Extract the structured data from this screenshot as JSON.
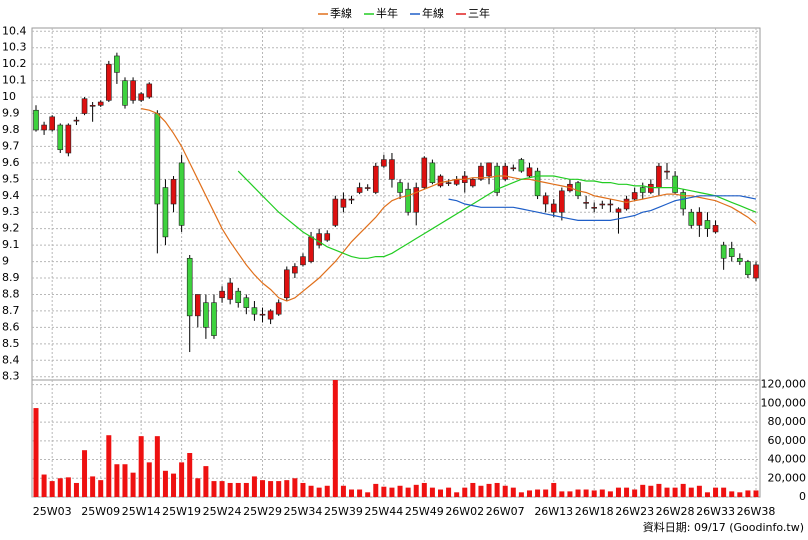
{
  "chart_data": {
    "type": "candlestick",
    "legend": "top",
    "grid": true,
    "up_color": "#dd1010",
    "down_color": "#3ed23e",
    "volume_color": "#ee1111",
    "categories": [
      null,
      null,
      "25W03",
      null,
      null,
      null,
      null,
      null,
      "25W09",
      null,
      null,
      null,
      null,
      "25W14",
      null,
      null,
      null,
      null,
      "25W19",
      null,
      null,
      null,
      null,
      "25W24",
      null,
      null,
      null,
      null,
      "25W29",
      null,
      null,
      null,
      null,
      "25W34",
      null,
      null,
      null,
      null,
      "25W39",
      null,
      null,
      null,
      null,
      "25W44",
      null,
      null,
      null,
      null,
      "25W49",
      null,
      null,
      null,
      null,
      "26W02",
      null,
      null,
      null,
      null,
      "26W07",
      null,
      null,
      null,
      null,
      null,
      "26W13",
      null,
      null,
      null,
      null,
      "26W18",
      null,
      null,
      null,
      null,
      "26W23",
      null,
      null,
      null,
      null,
      "26W28",
      null,
      null,
      null,
      null,
      "26W33",
      null,
      null,
      null,
      null,
      "26W38"
    ],
    "open": [
      9.92,
      9.8,
      9.8,
      9.83,
      9.66,
      9.86,
      9.9,
      9.95,
      9.95,
      9.98,
      10.25,
      10.1,
      9.98,
      9.98,
      10.0,
      9.9,
      9.45,
      9.35,
      9.6,
      9.02,
      8.67,
      8.75,
      8.75,
      8.78,
      8.77,
      8.82,
      8.78,
      8.72,
      8.68,
      8.65,
      8.68,
      8.78,
      8.93,
      8.98,
      9.0,
      9.1,
      9.13,
      9.22,
      9.33,
      9.38,
      9.42,
      9.45,
      9.42,
      9.58,
      9.5,
      9.48,
      9.44,
      9.3,
      9.45,
      9.6,
      9.46,
      9.48,
      9.47,
      9.48,
      9.46,
      9.5,
      9.52,
      9.58,
      9.5,
      9.57,
      9.62,
      9.52,
      9.55,
      9.35,
      9.3,
      9.3,
      9.43,
      9.48,
      9.36,
      9.33,
      9.35,
      9.35,
      9.3,
      9.32,
      9.38,
      9.45,
      9.42,
      9.45,
      9.55,
      9.52,
      9.42,
      9.3,
      9.22,
      9.25,
      9.18,
      9.1,
      9.08,
      9.02,
      9.0,
      8.9
    ],
    "high": [
      9.95,
      9.85,
      9.89,
      9.84,
      9.84,
      9.88,
      10.0,
      9.97,
      9.98,
      10.22,
      10.27,
      10.12,
      10.12,
      10.03,
      10.09,
      9.92,
      9.5,
      9.52,
      9.65,
      9.04,
      8.8,
      8.8,
      8.8,
      8.85,
      8.9,
      8.84,
      8.8,
      8.76,
      8.72,
      8.71,
      8.77,
      8.97,
      8.99,
      9.05,
      9.18,
      9.2,
      9.19,
      9.4,
      9.42,
      9.4,
      9.48,
      9.47,
      9.6,
      9.65,
      9.66,
      9.5,
      9.48,
      9.48,
      9.64,
      9.62,
      9.53,
      9.5,
      9.52,
      9.55,
      9.51,
      9.6,
      9.6,
      9.6,
      9.6,
      9.59,
      9.63,
      9.6,
      9.57,
      9.42,
      9.38,
      9.45,
      9.5,
      9.49,
      9.4,
      9.36,
      9.37,
      9.38,
      9.33,
      9.4,
      9.45,
      9.48,
      9.5,
      9.6,
      9.6,
      9.55,
      9.44,
      9.32,
      9.33,
      9.3,
      9.25,
      9.12,
      9.12,
      9.05,
      9.01,
      9.0
    ],
    "low": [
      9.79,
      9.77,
      9.79,
      9.66,
      9.64,
      9.83,
      9.89,
      9.85,
      9.94,
      9.97,
      10.08,
      9.93,
      9.96,
      9.97,
      9.99,
      9.05,
      9.1,
      9.3,
      9.18,
      8.45,
      8.6,
      8.53,
      8.53,
      8.75,
      8.74,
      8.72,
      8.68,
      8.64,
      8.63,
      8.62,
      8.67,
      8.76,
      8.9,
      8.97,
      8.99,
      9.08,
      9.12,
      9.21,
      9.3,
      9.35,
      9.41,
      9.43,
      9.41,
      9.57,
      9.45,
      9.38,
      9.28,
      9.22,
      9.44,
      9.47,
      9.45,
      9.46,
      9.46,
      9.42,
      9.45,
      9.49,
      9.47,
      9.4,
      9.49,
      9.55,
      9.54,
      9.51,
      9.38,
      9.3,
      9.27,
      9.25,
      9.42,
      9.38,
      9.32,
      9.3,
      9.32,
      9.3,
      9.17,
      9.31,
      9.37,
      9.38,
      9.41,
      9.4,
      9.5,
      9.41,
      9.28,
      9.2,
      9.15,
      9.15,
      9.17,
      8.95,
      9.0,
      8.98,
      8.9,
      8.88
    ],
    "close": [
      9.8,
      9.83,
      9.88,
      9.68,
      9.83,
      9.86,
      9.99,
      9.95,
      9.97,
      10.2,
      10.15,
      9.95,
      10.1,
      10.02,
      10.08,
      9.35,
      9.15,
      9.5,
      9.22,
      8.67,
      8.8,
      8.6,
      8.55,
      8.82,
      8.87,
      8.75,
      8.72,
      8.68,
      8.68,
      8.7,
      8.75,
      8.95,
      8.97,
      9.03,
      9.15,
      9.17,
      9.17,
      9.38,
      9.38,
      9.38,
      9.45,
      9.45,
      9.58,
      9.62,
      9.62,
      9.42,
      9.3,
      9.45,
      9.63,
      9.48,
      9.52,
      9.48,
      9.5,
      9.52,
      9.5,
      9.58,
      9.6,
      9.42,
      9.58,
      9.57,
      9.55,
      9.57,
      9.4,
      9.4,
      9.35,
      9.43,
      9.47,
      9.4,
      9.36,
      9.33,
      9.35,
      9.35,
      9.32,
      9.38,
      9.42,
      9.42,
      9.47,
      9.58,
      9.55,
      9.42,
      9.32,
      9.22,
      9.3,
      9.2,
      9.22,
      9.02,
      9.03,
      9.0,
      8.92,
      8.98
    ],
    "volume": [
      95000,
      24000,
      17000,
      20000,
      21000,
      15000,
      50000,
      22000,
      18000,
      66000,
      35000,
      35000,
      26000,
      65000,
      37000,
      65000,
      28000,
      25000,
      37000,
      47000,
      20000,
      33000,
      17000,
      17000,
      15000,
      15000,
      15000,
      22000,
      18000,
      17000,
      17000,
      18000,
      20000,
      15000,
      12000,
      10000,
      12000,
      125000,
      12000,
      8000,
      8000,
      5000,
      14000,
      11000,
      10000,
      12000,
      10000,
      13000,
      15000,
      10000,
      8000,
      10000,
      5000,
      10000,
      15000,
      12000,
      14000,
      15000,
      12000,
      10000,
      5000,
      7000,
      8000,
      8000,
      15000,
      6000,
      6000,
      8000,
      8000,
      7000,
      8000,
      6000,
      10000,
      10000,
      8000,
      13000,
      12000,
      14000,
      10000,
      10000,
      14000,
      10000,
      12000,
      5000,
      10000,
      10000,
      6000,
      5000,
      7000,
      7000
    ],
    "series": [
      {
        "name": "季線",
        "color": "#e0701c",
        "values": [
          null,
          null,
          null,
          null,
          null,
          null,
          null,
          null,
          null,
          null,
          null,
          null,
          null,
          9.93,
          9.92,
          9.9,
          9.85,
          9.78,
          9.7,
          9.6,
          9.5,
          9.4,
          9.3,
          9.2,
          9.12,
          9.05,
          8.98,
          8.92,
          8.87,
          8.83,
          8.78,
          8.76,
          8.78,
          8.82,
          8.86,
          8.9,
          8.95,
          9.0,
          9.06,
          9.12,
          9.17,
          9.22,
          9.27,
          9.33,
          9.37,
          9.39,
          9.4,
          9.42,
          9.44,
          9.46,
          9.48,
          9.49,
          9.5,
          9.5,
          9.51,
          9.51,
          9.51,
          9.52,
          9.52,
          9.51,
          9.5,
          9.5,
          9.49,
          9.48,
          9.47,
          9.46,
          9.45,
          9.43,
          9.42,
          9.4,
          9.39,
          9.38,
          9.37,
          9.36,
          9.37,
          9.38,
          9.39,
          9.4,
          9.41,
          9.41,
          9.4,
          9.4,
          9.39,
          9.38,
          9.37,
          9.35,
          9.33,
          9.3,
          9.27,
          9.23
        ]
      },
      {
        "name": "半年",
        "color": "#22cc22",
        "values": [
          null,
          null,
          null,
          null,
          null,
          null,
          null,
          null,
          null,
          null,
          null,
          null,
          null,
          null,
          null,
          null,
          null,
          null,
          null,
          null,
          null,
          null,
          null,
          null,
          null,
          9.55,
          9.5,
          9.45,
          9.4,
          9.35,
          9.3,
          9.26,
          9.22,
          9.18,
          9.15,
          9.12,
          9.09,
          9.07,
          9.05,
          9.03,
          9.02,
          9.02,
          9.03,
          9.03,
          9.05,
          9.08,
          9.11,
          9.14,
          9.17,
          9.2,
          9.23,
          9.26,
          9.29,
          9.32,
          9.35,
          9.38,
          9.41,
          9.44,
          9.46,
          9.48,
          9.5,
          9.51,
          9.52,
          9.52,
          9.52,
          9.51,
          9.5,
          9.5,
          9.49,
          9.49,
          9.48,
          9.48,
          9.47,
          9.47,
          9.46,
          9.46,
          9.45,
          9.45,
          9.45,
          9.45,
          9.44,
          9.43,
          9.42,
          9.41,
          9.4,
          9.38,
          9.36,
          9.34,
          9.32,
          9.3
        ]
      },
      {
        "name": "年線",
        "color": "#1f5fc8",
        "values": [
          null,
          null,
          null,
          null,
          null,
          null,
          null,
          null,
          null,
          null,
          null,
          null,
          null,
          null,
          null,
          null,
          null,
          null,
          null,
          null,
          null,
          null,
          null,
          null,
          null,
          null,
          null,
          null,
          null,
          null,
          null,
          null,
          null,
          null,
          null,
          null,
          null,
          null,
          null,
          null,
          null,
          null,
          null,
          null,
          null,
          null,
          null,
          null,
          null,
          null,
          null,
          9.38,
          9.37,
          9.35,
          9.34,
          9.33,
          9.33,
          9.33,
          9.33,
          9.33,
          9.32,
          9.31,
          9.3,
          9.29,
          9.28,
          9.27,
          9.26,
          9.25,
          9.25,
          9.25,
          9.25,
          9.25,
          9.26,
          9.27,
          9.28,
          9.3,
          9.31,
          9.33,
          9.35,
          9.37,
          9.38,
          9.39,
          9.4,
          9.4,
          9.4,
          9.4,
          9.4,
          9.4,
          9.39,
          9.38
        ]
      },
      {
        "name": "三年",
        "color": "#e02020"
      }
    ],
    "ylim": [
      8.28,
      10.42
    ],
    "yticks": [
      8.3,
      8.4,
      8.5,
      8.6,
      8.7,
      8.8,
      8.9,
      9,
      9.1,
      9.2,
      9.3,
      9.4,
      9.5,
      9.6,
      9.7,
      9.8,
      9.9,
      10,
      10.1,
      10.2,
      10.3,
      10.4
    ],
    "y2lim": [
      0,
      125000
    ],
    "y2ticks": [
      0,
      {
        "value": 20000,
        "label": "20,000"
      },
      {
        "value": 40000,
        "label": "40,000"
      },
      {
        "value": 60000,
        "label": "60,000"
      },
      {
        "value": 80000,
        "label": "80,000"
      },
      {
        "value": 100000,
        "label": "100,000"
      },
      {
        "value": 120000,
        "label": "120,000"
      }
    ],
    "note": "資料日期: 09/17  (Goodinfo.tw)"
  }
}
